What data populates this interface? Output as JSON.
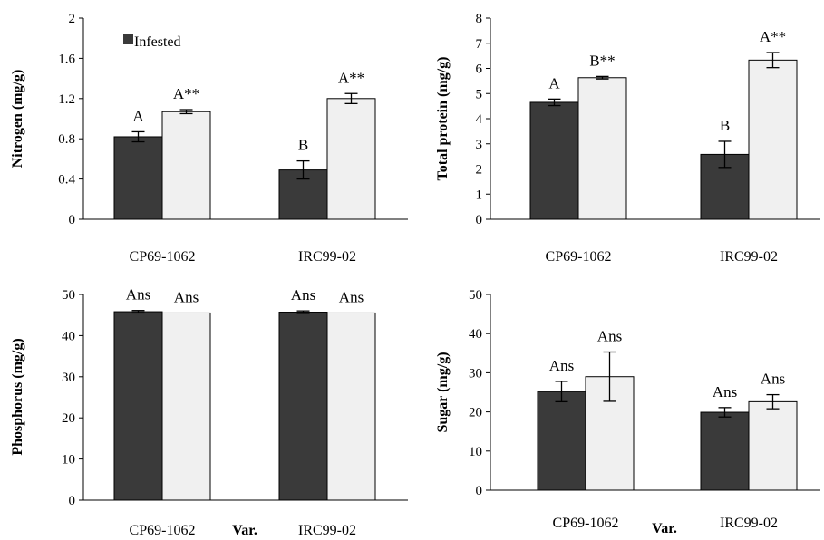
{
  "legend": {
    "infested_label": "Infested"
  },
  "colors": {
    "infested": "#3a3a3a",
    "healthy": "#f0f0f0",
    "axis": "#000000"
  },
  "chart_data": [
    {
      "id": "nitrogen",
      "type": "bar",
      "title": "",
      "ylabel": "Nitrogen (mg/g)",
      "xlabel": "",
      "ylim": [
        0,
        2
      ],
      "yticks": [
        0,
        0.4,
        0.8,
        1.2,
        1.6,
        2
      ],
      "ytick_labels": [
        "0",
        "0.4",
        "0.8",
        "1.2",
        "1.6",
        "2"
      ],
      "categories": [
        "CP69-1062",
        "IRC99-02"
      ],
      "series": [
        {
          "name": "Infested",
          "values": [
            0.82,
            0.49
          ],
          "errors": [
            0.05,
            0.09
          ],
          "labels": [
            "A",
            "B"
          ]
        },
        {
          "values": [
            1.07,
            1.2
          ],
          "errors": [
            0.02,
            0.05
          ],
          "labels": [
            "A**",
            "A**"
          ]
        }
      ]
    },
    {
      "id": "total-protein",
      "type": "bar",
      "title": "",
      "ylabel": "Total protein (mg/g)",
      "xlabel": "",
      "ylim": [
        0,
        8
      ],
      "yticks": [
        0,
        1,
        2,
        3,
        4,
        5,
        6,
        7,
        8
      ],
      "ytick_labels": [
        "0",
        "1",
        "2",
        "3",
        "4",
        "5",
        "6",
        "7",
        "8"
      ],
      "categories": [
        "CP69-1062",
        "IRC99-02"
      ],
      "series": [
        {
          "name": "Infested",
          "values": [
            4.65,
            2.58
          ],
          "errors": [
            0.13,
            0.52
          ],
          "labels": [
            "A",
            "B"
          ]
        },
        {
          "values": [
            5.63,
            6.33
          ],
          "errors": [
            0.05,
            0.3
          ],
          "labels": [
            "B**",
            "A**"
          ]
        }
      ]
    },
    {
      "id": "phosphorus",
      "type": "bar",
      "title": "",
      "ylabel": "Phosphorus (mg/g)",
      "xlabel": "Var.",
      "ylim": [
        0,
        50
      ],
      "yticks": [
        0,
        10,
        20,
        30,
        40,
        50
      ],
      "ytick_labels": [
        "0",
        "10",
        "20",
        "30",
        "40",
        "50"
      ],
      "categories": [
        "CP69-1062",
        "IRC99-02"
      ],
      "series": [
        {
          "name": "Infested",
          "values": [
            45.8,
            45.7
          ],
          "errors": [
            0.3,
            0.3
          ],
          "labels": [
            "Ans",
            "Ans"
          ]
        },
        {
          "values": [
            45.5,
            45.5
          ],
          "errors": [
            0,
            0
          ],
          "labels": [
            "Ans",
            "Ans"
          ]
        }
      ]
    },
    {
      "id": "sugar",
      "type": "bar",
      "title": "",
      "ylabel": "Sugar (mg/g)",
      "xlabel": "Var.",
      "ylim": [
        0,
        50
      ],
      "yticks": [
        0,
        10,
        20,
        30,
        40,
        50
      ],
      "ytick_labels": [
        "0",
        "10",
        "20",
        "30",
        "40",
        "50"
      ],
      "categories": [
        "CP69-1062",
        "IRC99-02"
      ],
      "series": [
        {
          "name": "Infested",
          "values": [
            25.2,
            19.9
          ],
          "errors": [
            2.6,
            1.2
          ],
          "labels": [
            "Ans",
            "Ans"
          ]
        },
        {
          "values": [
            29.0,
            22.6
          ],
          "errors": [
            6.3,
            1.8
          ],
          "labels": [
            "Ans",
            "Ans"
          ]
        }
      ]
    }
  ]
}
